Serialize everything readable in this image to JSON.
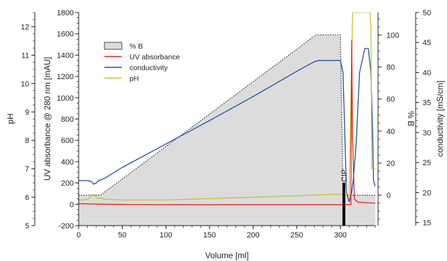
{
  "chart_data": {
    "type": "line",
    "xlabel": "Volume [ml]",
    "xlim": [
      0,
      340
    ],
    "x_ticks": [
      0,
      50,
      100,
      150,
      200,
      250,
      300
    ],
    "axes": {
      "ph": {
        "label": "pH",
        "range": [
          5,
          12.5
        ],
        "ticks": [
          5,
          6,
          7,
          8,
          9,
          10,
          11,
          12
        ]
      },
      "uv": {
        "label": "UV absorbance @ 280 nm [mAU]",
        "range": [
          -200,
          1800
        ],
        "ticks": [
          -200,
          0,
          200,
          400,
          600,
          800,
          1000,
          1200,
          1400,
          1600,
          1800
        ]
      },
      "pctb": {
        "label": "% B",
        "range": [
          -19,
          114
        ],
        "ticks": [
          0,
          20,
          40,
          60,
          80,
          100
        ]
      },
      "cond": {
        "label": "conductivity [mS/cm]",
        "range": [
          14.5,
          50
        ],
        "ticks": [
          15,
          20,
          25,
          30,
          35,
          40,
          45,
          50
        ]
      }
    },
    "legend": {
      "position": "top-left",
      "entries": [
        {
          "name": "% B",
          "kind": "area"
        },
        {
          "name": "UV absorbance",
          "kind": "line"
        },
        {
          "name": "conductivity",
          "kind": "line"
        },
        {
          "name": "pH",
          "kind": "line"
        }
      ]
    },
    "annotation": {
      "text": "CIP",
      "x": 304
    },
    "colors": {
      "uv": "#e8201a",
      "conductivity": "#1d4e9e",
      "ph": "#c8c222",
      "pctb_fill": "#dcdcdc",
      "pctb_line": "#222222",
      "cip_bar": "#000000"
    },
    "series": [
      {
        "name": "% B",
        "axis": "pctb",
        "x": [
          0,
          15,
          25,
          272,
          300,
          303,
          340
        ],
        "y": [
          0,
          0,
          0,
          100,
          100,
          0,
          0
        ]
      },
      {
        "name": "UV absorbance",
        "axis": "uv",
        "x": [
          0,
          10,
          20,
          30,
          60,
          100,
          150,
          200,
          250,
          300,
          310,
          312,
          313,
          314,
          316,
          320,
          340
        ],
        "y": [
          5,
          4,
          2,
          0,
          -2,
          -4,
          -4,
          -4,
          -4,
          -4,
          -2,
          0,
          1540,
          600,
          50,
          20,
          10
        ]
      },
      {
        "name": "conductivity",
        "axis": "cond",
        "x": [
          0,
          10,
          15,
          17,
          20,
          23,
          30,
          50,
          100,
          150,
          200,
          250,
          270,
          275,
          290,
          300,
          303,
          305,
          307,
          310,
          313,
          315,
          318,
          322,
          328,
          332,
          335,
          337,
          338,
          340
        ],
        "y": [
          22.0,
          22.0,
          21.8,
          21.4,
          21.6,
          22.0,
          22.4,
          24.2,
          28.1,
          32.0,
          36.0,
          40.2,
          41.8,
          42.0,
          42.0,
          42.0,
          40.0,
          30.0,
          20.0,
          18.5,
          20.0,
          22.5,
          28.0,
          40.0,
          44.0,
          44.0,
          40.0,
          30.0,
          22.0,
          21.0
        ]
      },
      {
        "name": "pH",
        "axis": "ph",
        "x": [
          0,
          5,
          10,
          15,
          18,
          20,
          22,
          25,
          30,
          35,
          50,
          100,
          150,
          200,
          250,
          290,
          300,
          305,
          310,
          314,
          316,
          318,
          320,
          325,
          330,
          334,
          335,
          336,
          340
        ],
        "y": [
          5.9,
          5.9,
          5.92,
          6.05,
          6.1,
          6.0,
          5.95,
          5.98,
          5.92,
          5.92,
          5.9,
          5.9,
          5.95,
          6.0,
          6.05,
          6.1,
          6.1,
          6.08,
          6.1,
          12.5,
          12.5,
          12.5,
          12.5,
          12.5,
          12.5,
          12.5,
          12.0,
          7.0,
          7.0
        ]
      }
    ]
  }
}
